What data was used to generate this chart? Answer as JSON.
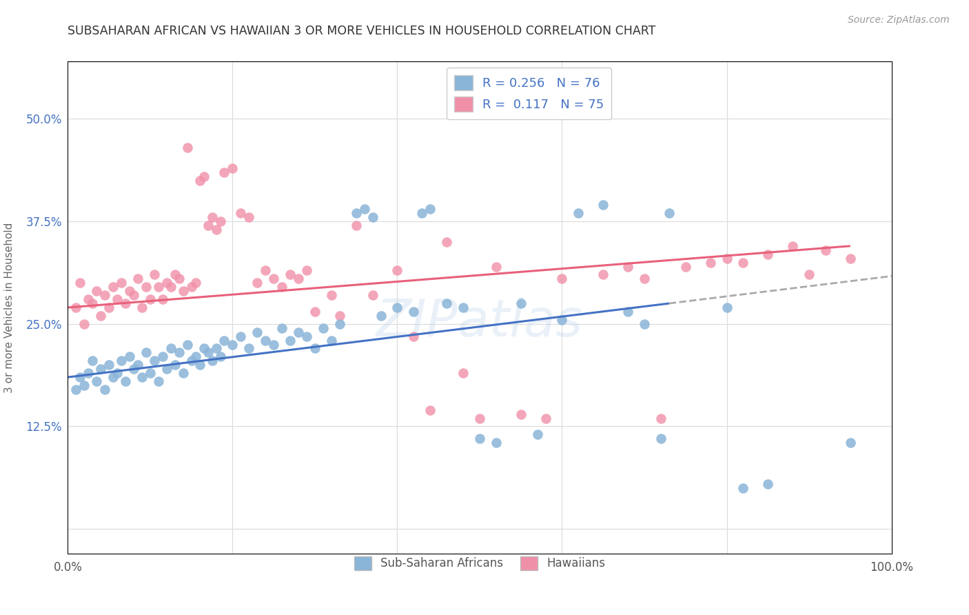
{
  "title": "SUBSAHARAN AFRICAN VS HAWAIIAN 3 OR MORE VEHICLES IN HOUSEHOLD CORRELATION CHART",
  "source": "Source: ZipAtlas.com",
  "ylabel": "3 or more Vehicles in Household",
  "xlim": [
    0.0,
    100.0
  ],
  "ylim": [
    -3.0,
    57.0
  ],
  "yticks": [
    0.0,
    12.5,
    25.0,
    37.5,
    50.0
  ],
  "color_blue": "#8ab4d8",
  "color_pink": "#f090a8",
  "color_blue_line": "#4472c4",
  "color_pink_line": "#e8607a",
  "color_dashed": "#aaaaaa",
  "blue_scatter": [
    [
      1.0,
      17.0
    ],
    [
      1.5,
      18.5
    ],
    [
      2.0,
      17.5
    ],
    [
      2.5,
      19.0
    ],
    [
      3.0,
      20.5
    ],
    [
      3.5,
      18.0
    ],
    [
      4.0,
      19.5
    ],
    [
      4.5,
      17.0
    ],
    [
      5.0,
      20.0
    ],
    [
      5.5,
      18.5
    ],
    [
      6.0,
      19.0
    ],
    [
      6.5,
      20.5
    ],
    [
      7.0,
      18.0
    ],
    [
      7.5,
      21.0
    ],
    [
      8.0,
      19.5
    ],
    [
      8.5,
      20.0
    ],
    [
      9.0,
      18.5
    ],
    [
      9.5,
      21.5
    ],
    [
      10.0,
      19.0
    ],
    [
      10.5,
      20.5
    ],
    [
      11.0,
      18.0
    ],
    [
      11.5,
      21.0
    ],
    [
      12.0,
      19.5
    ],
    [
      12.5,
      22.0
    ],
    [
      13.0,
      20.0
    ],
    [
      13.5,
      21.5
    ],
    [
      14.0,
      19.0
    ],
    [
      14.5,
      22.5
    ],
    [
      15.0,
      20.5
    ],
    [
      15.5,
      21.0
    ],
    [
      16.0,
      20.0
    ],
    [
      16.5,
      22.0
    ],
    [
      17.0,
      21.5
    ],
    [
      17.5,
      20.5
    ],
    [
      18.0,
      22.0
    ],
    [
      18.5,
      21.0
    ],
    [
      19.0,
      23.0
    ],
    [
      20.0,
      22.5
    ],
    [
      21.0,
      23.5
    ],
    [
      22.0,
      22.0
    ],
    [
      23.0,
      24.0
    ],
    [
      24.0,
      23.0
    ],
    [
      25.0,
      22.5
    ],
    [
      26.0,
      24.5
    ],
    [
      27.0,
      23.0
    ],
    [
      28.0,
      24.0
    ],
    [
      29.0,
      23.5
    ],
    [
      30.0,
      22.0
    ],
    [
      31.0,
      24.5
    ],
    [
      32.0,
      23.0
    ],
    [
      33.0,
      25.0
    ],
    [
      35.0,
      38.5
    ],
    [
      36.0,
      39.0
    ],
    [
      37.0,
      38.0
    ],
    [
      38.0,
      26.0
    ],
    [
      40.0,
      27.0
    ],
    [
      42.0,
      26.5
    ],
    [
      43.0,
      38.5
    ],
    [
      44.0,
      39.0
    ],
    [
      46.0,
      27.5
    ],
    [
      48.0,
      27.0
    ],
    [
      50.0,
      11.0
    ],
    [
      52.0,
      10.5
    ],
    [
      55.0,
      27.5
    ],
    [
      57.0,
      11.5
    ],
    [
      60.0,
      25.5
    ],
    [
      62.0,
      38.5
    ],
    [
      65.0,
      39.5
    ],
    [
      68.0,
      26.5
    ],
    [
      70.0,
      25.0
    ],
    [
      72.0,
      11.0
    ],
    [
      73.0,
      38.5
    ],
    [
      80.0,
      27.0
    ],
    [
      82.0,
      5.0
    ],
    [
      85.0,
      5.5
    ],
    [
      95.0,
      10.5
    ]
  ],
  "pink_scatter": [
    [
      1.0,
      27.0
    ],
    [
      1.5,
      30.0
    ],
    [
      2.0,
      25.0
    ],
    [
      2.5,
      28.0
    ],
    [
      3.0,
      27.5
    ],
    [
      3.5,
      29.0
    ],
    [
      4.0,
      26.0
    ],
    [
      4.5,
      28.5
    ],
    [
      5.0,
      27.0
    ],
    [
      5.5,
      29.5
    ],
    [
      6.0,
      28.0
    ],
    [
      6.5,
      30.0
    ],
    [
      7.0,
      27.5
    ],
    [
      7.5,
      29.0
    ],
    [
      8.0,
      28.5
    ],
    [
      8.5,
      30.5
    ],
    [
      9.0,
      27.0
    ],
    [
      9.5,
      29.5
    ],
    [
      10.0,
      28.0
    ],
    [
      10.5,
      31.0
    ],
    [
      11.0,
      29.5
    ],
    [
      11.5,
      28.0
    ],
    [
      12.0,
      30.0
    ],
    [
      12.5,
      29.5
    ],
    [
      13.0,
      31.0
    ],
    [
      13.5,
      30.5
    ],
    [
      14.0,
      29.0
    ],
    [
      14.5,
      46.5
    ],
    [
      15.0,
      29.5
    ],
    [
      15.5,
      30.0
    ],
    [
      16.0,
      42.5
    ],
    [
      16.5,
      43.0
    ],
    [
      17.0,
      37.0
    ],
    [
      17.5,
      38.0
    ],
    [
      18.0,
      36.5
    ],
    [
      18.5,
      37.5
    ],
    [
      19.0,
      43.5
    ],
    [
      20.0,
      44.0
    ],
    [
      21.0,
      38.5
    ],
    [
      22.0,
      38.0
    ],
    [
      23.0,
      30.0
    ],
    [
      24.0,
      31.5
    ],
    [
      25.0,
      30.5
    ],
    [
      26.0,
      29.5
    ],
    [
      27.0,
      31.0
    ],
    [
      28.0,
      30.5
    ],
    [
      29.0,
      31.5
    ],
    [
      30.0,
      26.5
    ],
    [
      32.0,
      28.5
    ],
    [
      33.0,
      26.0
    ],
    [
      35.0,
      37.0
    ],
    [
      37.0,
      28.5
    ],
    [
      40.0,
      31.5
    ],
    [
      42.0,
      23.5
    ],
    [
      44.0,
      14.5
    ],
    [
      46.0,
      35.0
    ],
    [
      48.0,
      19.0
    ],
    [
      50.0,
      13.5
    ],
    [
      52.0,
      32.0
    ],
    [
      55.0,
      14.0
    ],
    [
      58.0,
      13.5
    ],
    [
      60.0,
      30.5
    ],
    [
      65.0,
      31.0
    ],
    [
      68.0,
      32.0
    ],
    [
      70.0,
      30.5
    ],
    [
      72.0,
      13.5
    ],
    [
      75.0,
      32.0
    ],
    [
      78.0,
      32.5
    ],
    [
      80.0,
      33.0
    ],
    [
      82.0,
      32.5
    ],
    [
      85.0,
      33.5
    ],
    [
      88.0,
      34.5
    ],
    [
      90.0,
      31.0
    ],
    [
      92.0,
      34.0
    ],
    [
      95.0,
      33.0
    ]
  ],
  "blue_line_x0": 0.0,
  "blue_line_y0": 18.5,
  "blue_line_x1": 73.0,
  "blue_line_y1": 27.5,
  "pink_line_x0": 0.0,
  "pink_line_y0": 27.0,
  "pink_line_x1": 95.0,
  "pink_line_y1": 34.5,
  "dash_x0": 73.0,
  "dash_x1": 100.0
}
